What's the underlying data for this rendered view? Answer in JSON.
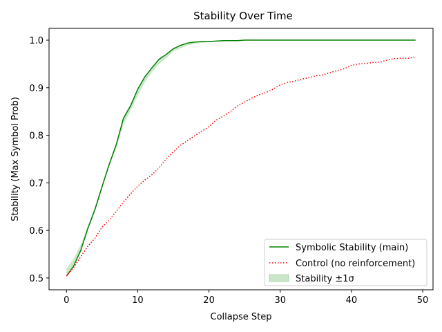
{
  "chart_data": {
    "type": "line",
    "title": "Stability Over Time",
    "xlabel": "Collapse Step",
    "ylabel": "Stability (Max Symbol Prob)",
    "xlim": [
      -2.45,
      51.45
    ],
    "ylim": [
      0.4752,
      1.0248
    ],
    "xticks": [
      0,
      10,
      20,
      30,
      40,
      50
    ],
    "xtick_labels": [
      "0",
      "10",
      "20",
      "30",
      "40",
      "50"
    ],
    "yticks": [
      0.5,
      0.6,
      0.7,
      0.8,
      0.9,
      1.0
    ],
    "ytick_labels": [
      "0.5",
      "0.6",
      "0.7",
      "0.8",
      "0.9",
      "1.0"
    ],
    "grid": false,
    "legend_position": "lower-right",
    "x": [
      0,
      1,
      2,
      3,
      4,
      5,
      6,
      7,
      8,
      9,
      10,
      11,
      12,
      13,
      14,
      15,
      16,
      17,
      18,
      19,
      20,
      21,
      22,
      23,
      24,
      25,
      26,
      27,
      28,
      29,
      30,
      31,
      32,
      33,
      34,
      35,
      36,
      37,
      38,
      39,
      40,
      41,
      42,
      43,
      44,
      45,
      46,
      47,
      48,
      49
    ],
    "series": [
      {
        "name": "Symbolic Stability (main)",
        "color": "#008000",
        "style": "solid",
        "values": [
          0.504,
          0.525,
          0.558,
          0.604,
          0.644,
          0.692,
          0.739,
          0.781,
          0.836,
          0.862,
          0.897,
          0.923,
          0.942,
          0.96,
          0.97,
          0.982,
          0.989,
          0.994,
          0.996,
          0.997,
          0.997,
          0.998,
          0.999,
          0.999,
          0.999,
          1.0,
          1.0,
          1.0,
          1.0,
          1.0,
          1.0,
          1.0,
          1.0,
          1.0,
          1.0,
          1.0,
          1.0,
          1.0,
          1.0,
          1.0,
          1.0,
          1.0,
          1.0,
          1.0,
          1.0,
          1.0,
          1.0,
          1.0,
          1.0,
          1.0
        ]
      },
      {
        "name": "Control (no reinforcement)",
        "color": "#ff0000",
        "style": "dotted",
        "values": [
          0.504,
          0.522,
          0.545,
          0.567,
          0.584,
          0.607,
          0.622,
          0.64,
          0.66,
          0.677,
          0.693,
          0.706,
          0.717,
          0.732,
          0.75,
          0.765,
          0.779,
          0.789,
          0.799,
          0.809,
          0.818,
          0.832,
          0.84,
          0.85,
          0.862,
          0.87,
          0.878,
          0.885,
          0.89,
          0.897,
          0.906,
          0.911,
          0.914,
          0.918,
          0.921,
          0.925,
          0.927,
          0.932,
          0.936,
          0.94,
          0.947,
          0.95,
          0.951,
          0.953,
          0.954,
          0.958,
          0.961,
          0.962,
          0.962,
          0.965
        ]
      }
    ],
    "band": {
      "name": "Stability ±1σ",
      "color": "#008000",
      "opacity": 0.2,
      "lower": [
        0.505,
        0.528,
        0.56,
        0.603,
        0.642,
        0.69,
        0.736,
        0.773,
        0.822,
        0.852,
        0.883,
        0.911,
        0.933,
        0.95,
        0.962,
        0.976,
        0.983,
        0.989,
        0.992,
        0.994,
        0.996,
        0.997,
        0.998,
        0.999,
        0.999,
        1.0,
        1.0,
        1.0,
        1.0,
        1.0,
        1.0,
        1.0,
        1.0,
        1.0,
        1.0,
        1.0,
        1.0,
        1.0,
        1.0,
        1.0,
        1.0,
        1.0,
        1.0,
        1.0,
        1.0,
        1.0,
        1.0,
        1.0,
        1.0,
        1.0
      ],
      "upper": [
        0.52,
        0.54,
        0.57,
        0.61,
        0.65,
        0.698,
        0.743,
        0.785,
        0.838,
        0.866,
        0.898,
        0.924,
        0.943,
        0.961,
        0.971,
        0.983,
        0.99,
        0.995,
        0.997,
        0.998,
        0.998,
        0.999,
        0.999,
        1.0,
        1.0,
        1.0,
        1.0,
        1.0,
        1.0,
        1.0,
        1.0,
        1.0,
        1.0,
        1.0,
        1.0,
        1.0,
        1.0,
        1.0,
        1.0,
        1.0,
        1.0,
        1.0,
        1.0,
        1.0,
        1.0,
        1.0,
        1.0,
        1.0,
        1.0,
        1.0
      ]
    }
  }
}
